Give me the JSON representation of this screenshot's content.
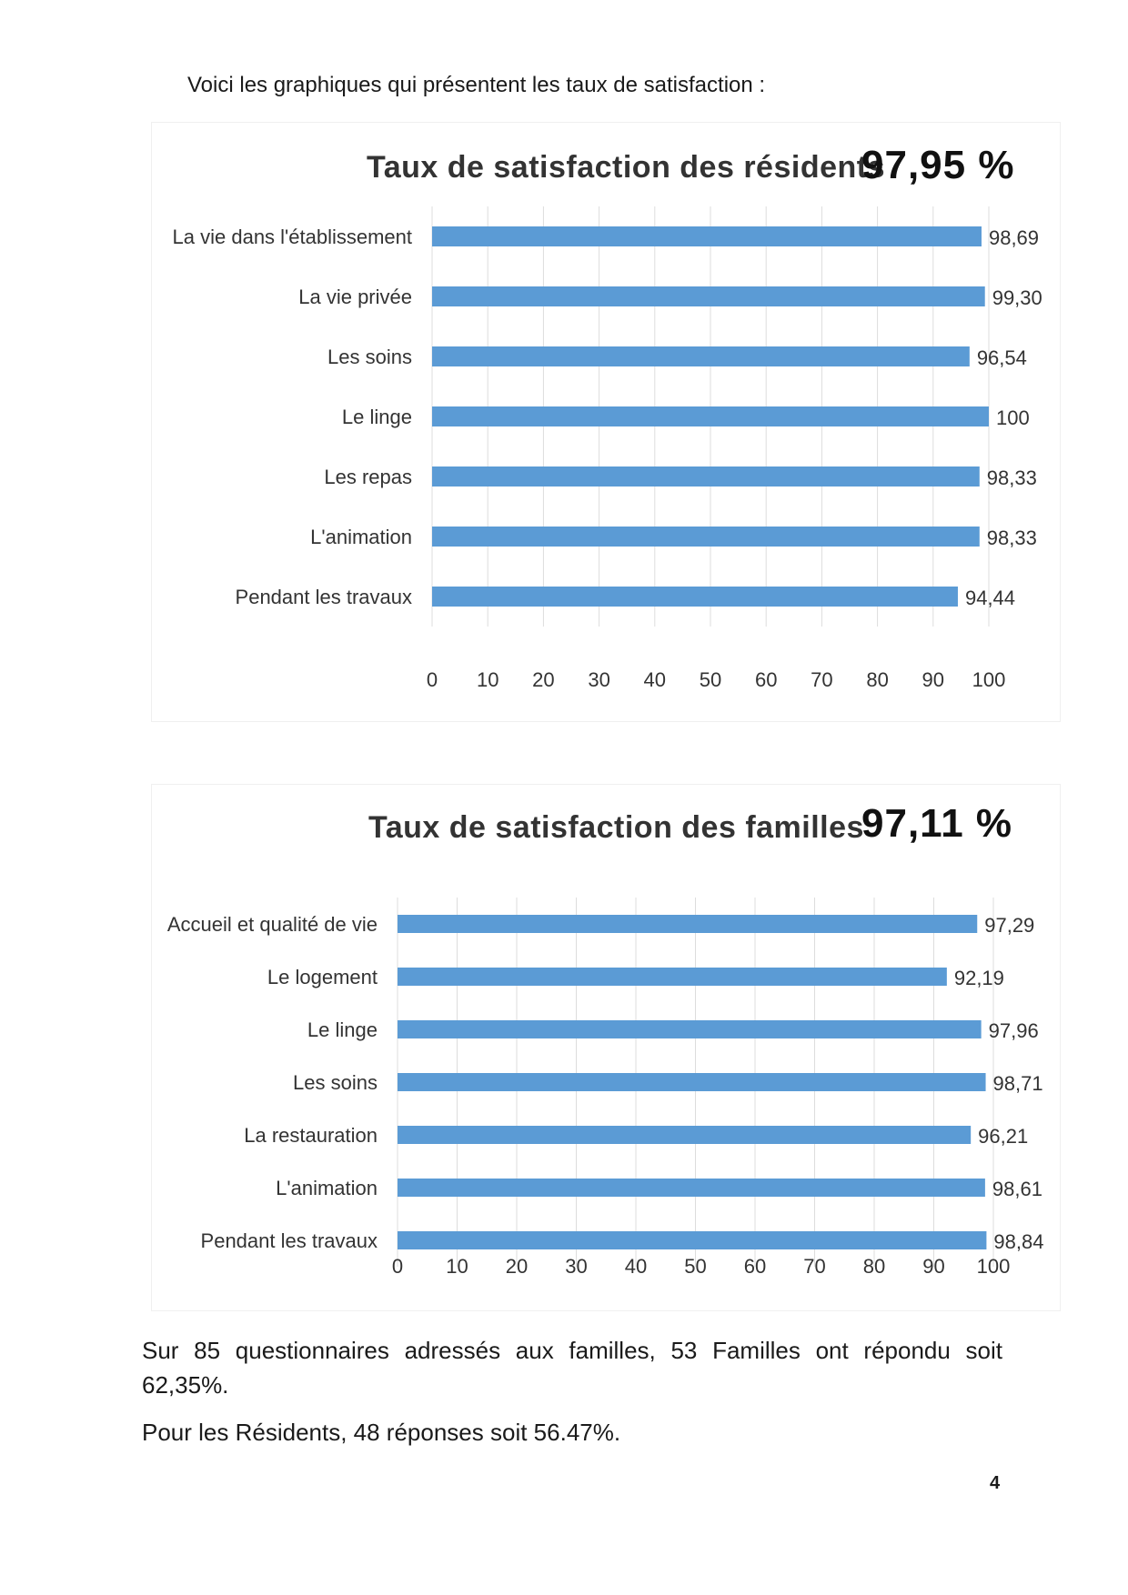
{
  "intro": "Voici les graphiques qui présentent les taux de satisfaction :",
  "chart_data": [
    {
      "type": "bar",
      "orientation": "horizontal",
      "title": "Taux de satisfaction des résidents",
      "headline": "97,95 %",
      "categories": [
        "La vie dans l'établissement",
        "La vie privée",
        "Les soins",
        "Le linge",
        "Les repas",
        "L'animation",
        "Pendant les travaux"
      ],
      "values": [
        98.69,
        99.3,
        96.54,
        100,
        98.33,
        98.33,
        94.44
      ],
      "value_labels": [
        "98,69",
        "99,30",
        "96,54",
        "100",
        "98,33",
        "98,33",
        "94,44"
      ],
      "xlim": [
        0,
        100
      ],
      "xticks": [
        0,
        10,
        20,
        30,
        40,
        50,
        60,
        70,
        80,
        90,
        100
      ],
      "grid": true,
      "color": "#5b9bd5"
    },
    {
      "type": "bar",
      "orientation": "horizontal",
      "title": "Taux de satisfaction des familles",
      "headline": "97,11 %",
      "categories": [
        "Accueil et qualité de vie",
        "Le logement",
        "Le linge",
        "Les soins",
        "La restauration",
        "L'animation",
        "Pendant les travaux"
      ],
      "values": [
        97.29,
        92.19,
        97.96,
        98.71,
        96.21,
        98.61,
        98.84
      ],
      "value_labels": [
        "97,29",
        "92,19",
        "97,96",
        "98,71",
        "96,21",
        "98,61",
        "98,84"
      ],
      "xlim": [
        0,
        100
      ],
      "xticks": [
        0,
        10,
        20,
        30,
        40,
        50,
        60,
        70,
        80,
        90,
        100
      ],
      "grid": true,
      "color": "#5b9bd5"
    }
  ],
  "summary": {
    "families": "Sur 85 questionnaires adressés aux familles, 53 Familles ont répondu soit 62,35%.",
    "residents": "Pour les Résidents, 48 réponses soit 56.47%."
  },
  "page_number": "4"
}
